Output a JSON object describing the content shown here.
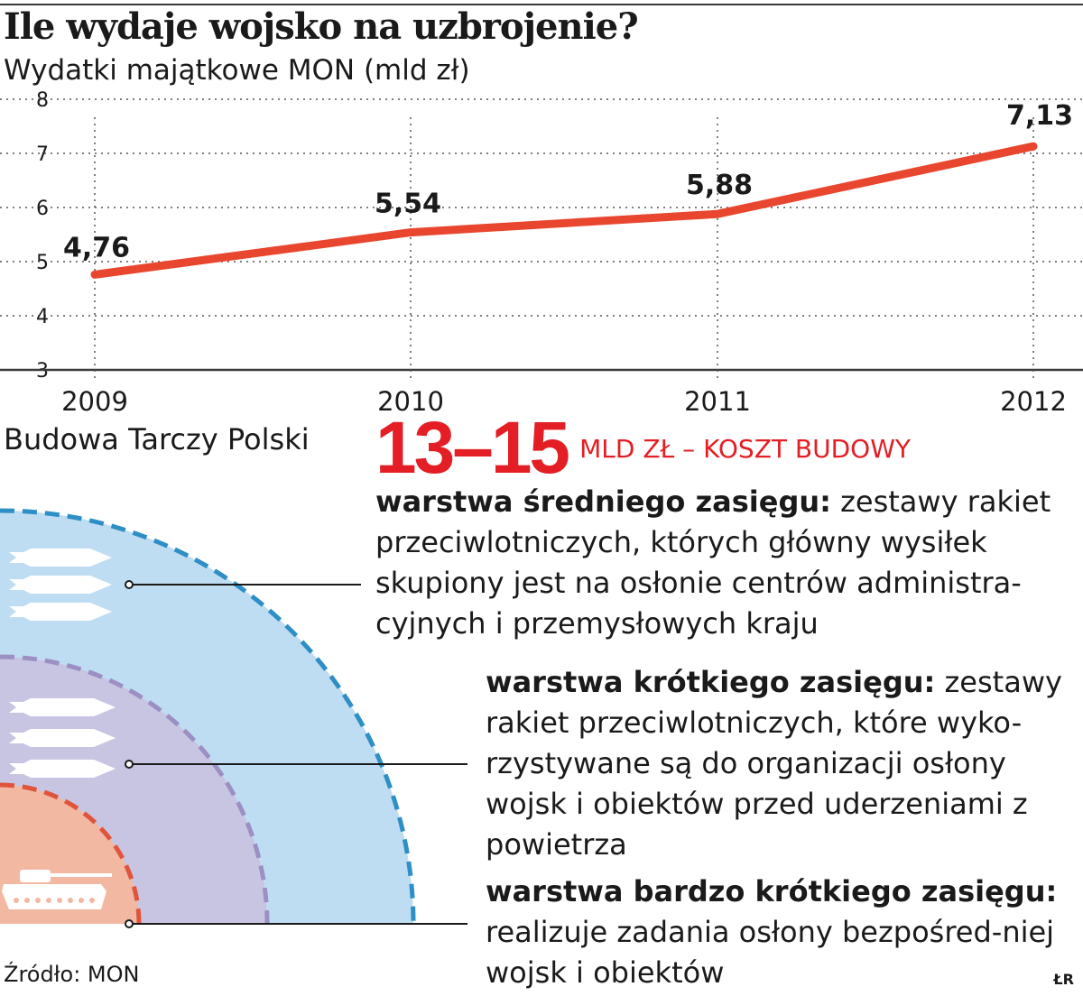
{
  "title": "Ile wydaje wojsko na uzbrojenie?",
  "subtitle": "Wydatki majątkowe MON (mld zł)",
  "chart_data": {
    "type": "line",
    "title": "Ile wydaje wojsko na uzbrojenie?",
    "ylabel": "Wydatki majątkowe MON (mld zł)",
    "xlabel": "",
    "categories": [
      "2009",
      "2010",
      "2011",
      "2012"
    ],
    "values": [
      4.76,
      5.54,
      5.88,
      7.13
    ],
    "data_labels": [
      "4,76",
      "5,54",
      "5,88",
      "7,13"
    ],
    "ylim": [
      3,
      8
    ],
    "yticks": [
      3,
      4,
      5,
      6,
      7,
      8
    ],
    "grid": "dotted",
    "line_color": "#e8462e"
  },
  "shield": {
    "heading": "Budowa Tarczy Polski",
    "cost_value": "13–15",
    "cost_label": "MLD ZŁ – KOSZT BUDOWY",
    "layers": [
      {
        "name": "warstwa średniego zasięgu:",
        "description": "zestawy rakiet przeciwlotniczych, których główny wysiłek skupiony jest na osłonie centrów administra-cyjnych i przemysłowych kraju",
        "color": "#bfddf2",
        "border_color": "#2e8ec6"
      },
      {
        "name": "warstwa krótkiego zasięgu:",
        "description": "zestawy rakiet przeciwlotniczych, które wyko-rzystywane są do organizacji osłony wojsk i obiektów przed uderzeniami z powietrza",
        "color": "#c8c5e2",
        "border_color": "#9b8fc4"
      },
      {
        "name": "warstwa bardzo krótkiego zasięgu:",
        "description": "realizuje zadania osłony bezpośred-niej wojsk i obiektów",
        "color": "#f2b8a2",
        "border_color": "#e0543c"
      }
    ]
  },
  "source": "Źródło: MON",
  "author": "ŁR",
  "colors": {
    "accent": "#e31e24",
    "line": "#e8462e",
    "grid": "#555555"
  }
}
